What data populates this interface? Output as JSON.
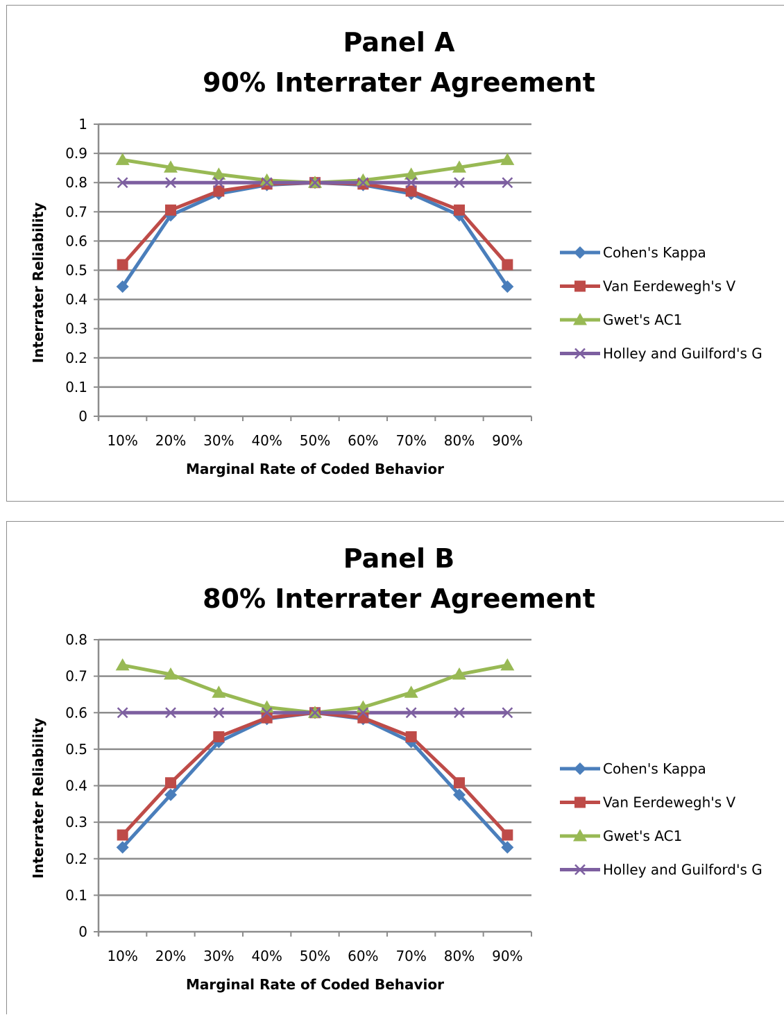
{
  "series_colors": {
    "Cohen's Kappa": "#4a7ebb",
    "Van Eerdewegh's V": "#be4b48",
    "Gwet's AC1": "#98b954",
    "Holley and Guilford's G": "#7d5fa0"
  },
  "chart_data": [
    {
      "type": "line",
      "title": "Panel A",
      "subtitle": "90% Interrater Agreement",
      "xlabel": "Marginal Rate of Coded Behavior",
      "ylabel": "Interrater Reliability",
      "categories": [
        "10%",
        "20%",
        "30%",
        "40%",
        "50%",
        "60%",
        "70%",
        "80%",
        "90%"
      ],
      "ylim": [
        0,
        1
      ],
      "yticks": [
        "0",
        "0.1",
        "0.2",
        "0.3",
        "0.4",
        "0.5",
        "0.6",
        "0.7",
        "0.8",
        "0.9",
        "1"
      ],
      "grid": true,
      "legend_position": "right",
      "series": [
        {
          "name": "Cohen's Kappa",
          "marker": "diamond",
          "values": [
            0.444,
            0.688,
            0.762,
            0.792,
            0.8,
            0.792,
            0.762,
            0.688,
            0.444
          ]
        },
        {
          "name": "Van Eerdewegh's V",
          "marker": "square",
          "values": [
            0.519,
            0.706,
            0.771,
            0.795,
            0.8,
            0.795,
            0.771,
            0.706,
            0.519
          ]
        },
        {
          "name": "Gwet's AC1",
          "marker": "triangle",
          "values": [
            0.878,
            0.852,
            0.828,
            0.808,
            0.8,
            0.808,
            0.828,
            0.852,
            0.878
          ]
        },
        {
          "name": "Holley and Guilford's G",
          "marker": "x",
          "values": [
            0.8,
            0.8,
            0.8,
            0.8,
            0.8,
            0.8,
            0.8,
            0.8,
            0.8
          ]
        }
      ]
    },
    {
      "type": "line",
      "title": "Panel B",
      "subtitle": "80% Interrater Agreement",
      "xlabel": "Marginal Rate of Coded Behavior",
      "ylabel": "Interrater Reliability",
      "categories": [
        "10%",
        "20%",
        "30%",
        "40%",
        "50%",
        "60%",
        "70%",
        "80%",
        "90%"
      ],
      "ylim": [
        0,
        0.8
      ],
      "yticks": [
        "0",
        "0.1",
        "0.2",
        "0.3",
        "0.4",
        "0.5",
        "0.6",
        "0.7",
        "0.8"
      ],
      "grid": true,
      "legend_position": "right",
      "series": [
        {
          "name": "Cohen's Kappa",
          "marker": "diamond",
          "values": [
            0.231,
            0.375,
            0.52,
            0.583,
            0.6,
            0.583,
            0.52,
            0.375,
            0.231
          ]
        },
        {
          "name": "Van Eerdewegh's V",
          "marker": "square",
          "values": [
            0.265,
            0.408,
            0.534,
            0.586,
            0.6,
            0.586,
            0.534,
            0.408,
            0.265
          ]
        },
        {
          "name": "Gwet's AC1",
          "marker": "triangle",
          "values": [
            0.73,
            0.705,
            0.655,
            0.615,
            0.6,
            0.615,
            0.655,
            0.705,
            0.73
          ]
        },
        {
          "name": "Holley and Guilford's G",
          "marker": "x",
          "values": [
            0.6,
            0.6,
            0.6,
            0.6,
            0.6,
            0.6,
            0.6,
            0.6,
            0.6
          ]
        }
      ]
    }
  ]
}
